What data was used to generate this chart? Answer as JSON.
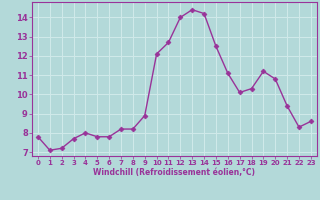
{
  "x": [
    0,
    1,
    2,
    3,
    4,
    5,
    6,
    7,
    8,
    9,
    10,
    11,
    12,
    13,
    14,
    15,
    16,
    17,
    18,
    19,
    20,
    21,
    22,
    23
  ],
  "y": [
    7.8,
    7.1,
    7.2,
    7.7,
    8.0,
    7.8,
    7.8,
    8.2,
    8.2,
    8.9,
    12.1,
    12.7,
    14.0,
    14.4,
    14.2,
    12.5,
    11.1,
    10.1,
    10.3,
    11.2,
    10.8,
    9.4,
    8.3,
    8.6
  ],
  "line_color": "#993399",
  "marker_color": "#993399",
  "bg_color": "#b3d9d9",
  "grid_color": "#d0eaea",
  "xlabel": "Windchill (Refroidissement éolien,°C)",
  "xlabel_color": "#993399",
  "tick_color": "#993399",
  "spine_color": "#993399",
  "ylim": [
    6.8,
    14.8
  ],
  "xlim": [
    -0.5,
    23.5
  ],
  "yticks": [
    7,
    8,
    9,
    10,
    11,
    12,
    13,
    14
  ],
  "xticks": [
    0,
    1,
    2,
    3,
    4,
    5,
    6,
    7,
    8,
    9,
    10,
    11,
    12,
    13,
    14,
    15,
    16,
    17,
    18,
    19,
    20,
    21,
    22,
    23
  ]
}
